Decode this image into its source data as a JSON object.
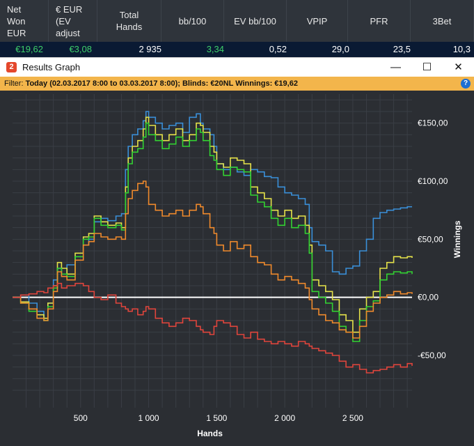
{
  "stats_table": {
    "headers": [
      [
        "Net",
        "Won",
        "EUR"
      ],
      [
        "€ EUR",
        "(EV",
        "adjust"
      ],
      [
        "Total",
        "Hands"
      ],
      [
        "bb/100"
      ],
      [
        "EV bb/100"
      ],
      [
        "VPIP"
      ],
      [
        "PFR"
      ],
      [
        "3Bet"
      ]
    ],
    "values": [
      "€19,62",
      "€3,08",
      "2 935",
      "3,34",
      "0,52",
      "29,0",
      "23,5",
      "10,3"
    ],
    "value_colors": [
      "#3ecf6a",
      "#3ecf6a",
      "#ffffff",
      "#3ecf6a",
      "#ffffff",
      "#ffffff",
      "#ffffff",
      "#ffffff"
    ]
  },
  "window": {
    "title": "Results Graph",
    "icon_text": "2",
    "minimize_glyph": "—",
    "maximize_glyph": "☐",
    "close_glyph": "✕"
  },
  "filter": {
    "label": "Filter:",
    "text": "Today (02.03.2017 8:00 to 03.03.2017 8:00); Blinds: €20NL Winnings: €19,62",
    "help_glyph": "?"
  },
  "chart_data": {
    "type": "line",
    "xlabel": "Hands",
    "ylabel": "Winnings",
    "xlim": [
      0,
      2935
    ],
    "ylim": [
      -95,
      175
    ],
    "x_ticks": [
      500,
      1000,
      1500,
      2000,
      2500
    ],
    "x_tick_labels": [
      "500",
      "1 000",
      "1 500",
      "2 000",
      "2 500"
    ],
    "y_ticks": [
      150,
      100,
      50,
      0,
      -50
    ],
    "y_tick_labels": [
      "€150,00",
      "€100,00",
      "€50,00",
      "€0,00",
      "-€50,00"
    ],
    "zero_line": true,
    "grid": true,
    "series": [
      {
        "color": "#3a8fd8",
        "x": [
          0,
          60,
          120,
          180,
          230,
          260,
          300,
          330,
          360,
          400,
          460,
          520,
          560,
          600,
          650,
          700,
          760,
          800,
          830,
          850,
          880,
          920,
          960,
          980,
          1000,
          1050,
          1100,
          1150,
          1200,
          1250,
          1300,
          1350,
          1380,
          1400,
          1450,
          1480,
          1500,
          1550,
          1600,
          1650,
          1700,
          1750,
          1800,
          1850,
          1900,
          1950,
          2000,
          2050,
          2100,
          2150,
          2180,
          2200,
          2250,
          2300,
          2350,
          2400,
          2450,
          2500,
          2550,
          2600,
          2650,
          2700,
          2750,
          2800,
          2850,
          2900,
          2935
        ],
        "y": [
          0,
          2,
          -5,
          -12,
          -20,
          -5,
          15,
          25,
          20,
          28,
          35,
          45,
          50,
          65,
          68,
          66,
          70,
          72,
          110,
          130,
          140,
          145,
          152,
          160,
          155,
          150,
          145,
          148,
          150,
          142,
          155,
          158,
          150,
          145,
          140,
          130,
          115,
          110,
          112,
          108,
          105,
          110,
          108,
          104,
          103,
          95,
          90,
          88,
          85,
          80,
          60,
          48,
          45,
          40,
          22,
          20,
          25,
          27,
          40,
          50,
          68,
          73,
          75,
          76,
          77,
          78,
          78
        ]
      },
      {
        "color": "#e6e34a",
        "x": [
          0,
          60,
          120,
          180,
          230,
          260,
          300,
          330,
          360,
          400,
          460,
          520,
          560,
          600,
          650,
          700,
          760,
          800,
          830,
          850,
          880,
          920,
          960,
          980,
          1000,
          1050,
          1100,
          1150,
          1200,
          1250,
          1300,
          1350,
          1380,
          1400,
          1450,
          1480,
          1500,
          1550,
          1600,
          1650,
          1700,
          1750,
          1800,
          1850,
          1900,
          1950,
          2000,
          2050,
          2100,
          2150,
          2180,
          2200,
          2250,
          2300,
          2350,
          2400,
          2450,
          2500,
          2550,
          2600,
          2650,
          2700,
          2750,
          2800,
          2850,
          2900,
          2935
        ],
        "y": [
          0,
          -4,
          -10,
          -15,
          -18,
          -5,
          10,
          30,
          25,
          20,
          38,
          52,
          55,
          70,
          65,
          62,
          64,
          60,
          95,
          120,
          130,
          135,
          145,
          155,
          148,
          140,
          135,
          140,
          145,
          135,
          140,
          150,
          148,
          142,
          130,
          125,
          115,
          112,
          120,
          118,
          115,
          95,
          90,
          85,
          75,
          70,
          75,
          68,
          70,
          62,
          45,
          15,
          10,
          5,
          -2,
          -15,
          -20,
          -30,
          -10,
          0,
          5,
          25,
          30,
          35,
          34,
          35,
          34
        ]
      },
      {
        "color": "#32d232",
        "x": [
          0,
          60,
          120,
          180,
          230,
          260,
          300,
          330,
          360,
          400,
          460,
          520,
          560,
          600,
          650,
          700,
          760,
          800,
          830,
          850,
          880,
          920,
          960,
          980,
          1000,
          1050,
          1100,
          1150,
          1200,
          1250,
          1300,
          1350,
          1380,
          1400,
          1450,
          1480,
          1500,
          1550,
          1600,
          1650,
          1700,
          1750,
          1800,
          1850,
          1900,
          1950,
          2000,
          2050,
          2100,
          2150,
          2180,
          2200,
          2250,
          2300,
          2350,
          2400,
          2450,
          2500,
          2550,
          2600,
          2650,
          2700,
          2750,
          2800,
          2850,
          2900,
          2935
        ],
        "y": [
          0,
          -5,
          -12,
          -18,
          -20,
          -8,
          8,
          25,
          20,
          18,
          35,
          50,
          52,
          68,
          62,
          60,
          62,
          58,
          90,
          115,
          125,
          128,
          138,
          150,
          140,
          135,
          128,
          132,
          138,
          130,
          135,
          145,
          142,
          135,
          122,
          118,
          110,
          105,
          112,
          110,
          108,
          88,
          82,
          78,
          68,
          62,
          68,
          60,
          62,
          55,
          38,
          5,
          0,
          -5,
          -12,
          -25,
          -30,
          -38,
          -20,
          -8,
          -3,
          15,
          20,
          22,
          21,
          22,
          20
        ]
      },
      {
        "color": "#f08a2c",
        "x": [
          0,
          60,
          120,
          180,
          230,
          260,
          300,
          330,
          360,
          400,
          460,
          520,
          560,
          600,
          650,
          700,
          760,
          800,
          830,
          850,
          880,
          920,
          960,
          980,
          1000,
          1050,
          1100,
          1150,
          1200,
          1250,
          1300,
          1350,
          1380,
          1400,
          1450,
          1480,
          1500,
          1550,
          1600,
          1650,
          1700,
          1750,
          1800,
          1850,
          1900,
          1950,
          2000,
          2050,
          2100,
          2150,
          2180,
          2200,
          2250,
          2300,
          2350,
          2400,
          2450,
          2500,
          2550,
          2600,
          2650,
          2700,
          2750,
          2800,
          2850,
          2900,
          2935
        ],
        "y": [
          0,
          -5,
          -10,
          -18,
          -20,
          -10,
          5,
          22,
          18,
          15,
          32,
          45,
          48,
          55,
          52,
          50,
          52,
          50,
          72,
          85,
          92,
          98,
          100,
          95,
          80,
          75,
          70,
          72,
          75,
          70,
          75,
          80,
          78,
          72,
          60,
          55,
          45,
          40,
          48,
          42,
          45,
          35,
          30,
          28,
          20,
          15,
          18,
          15,
          12,
          8,
          -2,
          -10,
          -15,
          -20,
          -22,
          -28,
          -30,
          -35,
          -25,
          -12,
          -5,
          0,
          2,
          5,
          3,
          4,
          3
        ]
      },
      {
        "color": "#e0453c",
        "x": [
          0,
          60,
          120,
          180,
          230,
          260,
          300,
          330,
          360,
          400,
          460,
          520,
          560,
          600,
          650,
          700,
          760,
          800,
          830,
          850,
          880,
          920,
          960,
          980,
          1000,
          1050,
          1100,
          1150,
          1200,
          1250,
          1300,
          1350,
          1380,
          1400,
          1450,
          1480,
          1500,
          1550,
          1600,
          1650,
          1700,
          1750,
          1800,
          1850,
          1900,
          1950,
          2000,
          2050,
          2100,
          2150,
          2180,
          2200,
          2250,
          2300,
          2350,
          2400,
          2450,
          2500,
          2550,
          2600,
          2650,
          2700,
          2750,
          2800,
          2850,
          2900,
          2935
        ],
        "y": [
          0,
          2,
          3,
          5,
          4,
          8,
          10,
          12,
          8,
          10,
          12,
          10,
          5,
          0,
          -2,
          2,
          -5,
          -8,
          -10,
          -12,
          -10,
          -15,
          -12,
          -8,
          -10,
          -18,
          -22,
          -25,
          -22,
          -18,
          -20,
          -25,
          -28,
          -30,
          -32,
          -25,
          -20,
          -22,
          -25,
          -32,
          -35,
          -30,
          -36,
          -38,
          -40,
          -38,
          -40,
          -42,
          -38,
          -40,
          -42,
          -44,
          -46,
          -48,
          -50,
          -55,
          -60,
          -58,
          -62,
          -65,
          -63,
          -62,
          -60,
          -58,
          -60,
          -57,
          -59
        ]
      }
    ]
  }
}
